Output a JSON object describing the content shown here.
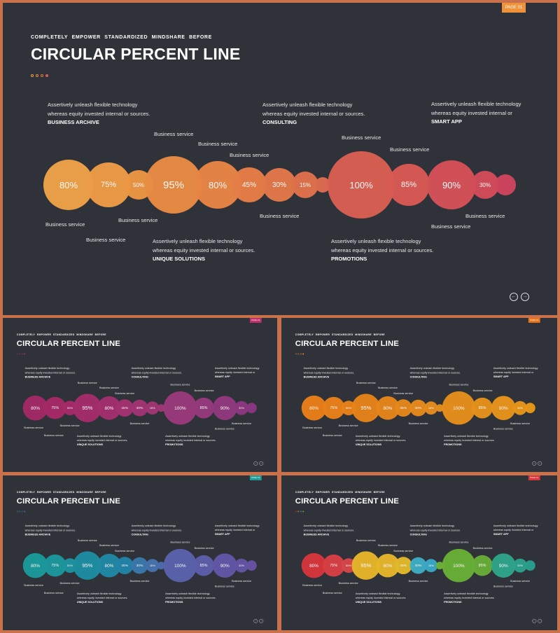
{
  "slides": [
    {
      "page_label": "PAGE 01",
      "badge_color": "#f0923a"
    },
    {
      "page_label": "PAGE 01",
      "badge_color": "#c0316b"
    },
    {
      "page_label": "PAGE 01",
      "badge_color": "#e8741b"
    },
    {
      "page_label": "PAGE 01",
      "badge_color": "#1f9f9a"
    },
    {
      "page_label": "PAGE 01",
      "badge_color": "#d9363e"
    }
  ],
  "common": {
    "eyebrow": "COMPLETELY EMPOWER STANDARDIZED MINDSHARE BEFORE",
    "title": "CIRCULAR PERCENT LINE",
    "nav_prev": "←",
    "nav_next": "→"
  },
  "descriptions": [
    {
      "text": "Assertively unleash flexible technology whereas equity invested internal or sources.",
      "heading": "BUSINESS ARCHIVE"
    },
    {
      "text": "Assertively unleash flexible technology whereas equity invested internal or sources.",
      "heading": "CONSULTING"
    },
    {
      "text": "Assertively unleash flexible technology whereas equity invested internal or",
      "inline_heading": "SMART APP"
    },
    {
      "text": "Assertively unleash flexible technology whereas equity invested internal or sources.",
      "heading": "UNIQUE SOLUTIONS"
    },
    {
      "text": "Assertively unleash flexible technology whereas equity invested internal or sources.",
      "heading": "PROMOTIONS"
    }
  ],
  "service_label": "Business service",
  "circles": [
    {
      "label": "80%"
    },
    {
      "label": "75%"
    },
    {
      "label": "50%"
    },
    {
      "label": "95%"
    },
    {
      "label": "80%"
    },
    {
      "label": "45%"
    },
    {
      "label": "30%"
    },
    {
      "label": "15%"
    },
    {
      "label": ""
    },
    {
      "label": "100%"
    },
    {
      "label": "85%"
    },
    {
      "label": "90%"
    },
    {
      "label": "30%"
    },
    {
      "label": ""
    }
  ],
  "palettes": [
    [
      "#eea248",
      "#ec9c46",
      "#eb9643",
      "#e98b44",
      "#e88545",
      "#e67e47",
      "#e27849",
      "#df714c",
      "#dc6b4e",
      "#d95f52",
      "#d95a55",
      "#d65158",
      "#d34c5a",
      "#cf445d"
    ],
    [
      "#a42a67",
      "#a52a68",
      "#a62b69",
      "#a52d6c",
      "#a4306e",
      "#a33270",
      "#a23472",
      "#a13674",
      "#a03876",
      "#9a3a7a",
      "#963a7c",
      "#92397e",
      "#8e3880",
      "#8a3782"
    ],
    [
      "#ea7f17",
      "#e98018",
      "#e88219",
      "#e7841a",
      "#e6861b",
      "#e6881b",
      "#e68a1c",
      "#e68c1c",
      "#e68e1c",
      "#e7901b",
      "#e7921a",
      "#e8941a",
      "#e89619",
      "#e89818"
    ],
    [
      "#1a9a9a",
      "#1c979c",
      "#1e949e",
      "#1e8ea0",
      "#2189a4",
      "#2384a8",
      "#3a78ab",
      "#4772ad",
      "#4d6cae",
      "#5a64ab",
      "#5e5eaa",
      "#6158a7",
      "#6455a4",
      "#6653a2"
    ],
    [
      "#d7363c",
      "#d73f44",
      "#d64747",
      "#e8b52b",
      "#e6b62a",
      "#e3b92c",
      "#3faec3",
      "#3aa9c6",
      "#6cb338",
      "#6ab037",
      "#68ad37",
      "#2fa58b",
      "#2ca28c",
      "#289f8d"
    ]
  ]
}
